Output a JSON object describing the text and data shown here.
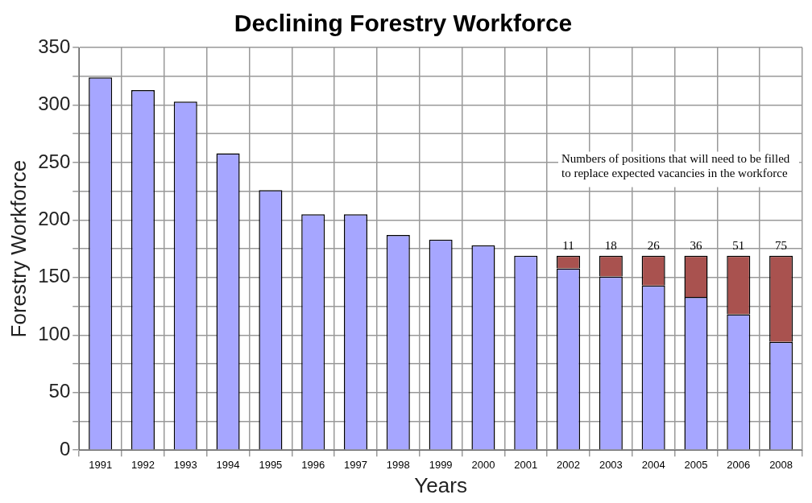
{
  "chart_data": {
    "type": "bar",
    "title": "Declining Forestry Workforce",
    "xlabel": "Years",
    "ylabel": "Forestry Workforce",
    "categories": [
      "1991",
      "1992",
      "1993",
      "1994",
      "1995",
      "1996",
      "1997",
      "1998",
      "1999",
      "2000",
      "2001",
      "2002",
      "2003",
      "2004",
      "2005",
      "2006",
      "2008"
    ],
    "stacked": true,
    "series": [
      {
        "color": "#a6a6ff",
        "values": [
          324,
          313,
          303,
          258,
          226,
          205,
          205,
          187,
          183,
          178,
          169,
          158,
          151,
          143,
          133,
          118,
          94
        ]
      },
      {
        "color": "#a9524f",
        "values": [
          null,
          null,
          null,
          null,
          null,
          null,
          null,
          null,
          null,
          null,
          null,
          11,
          18,
          26,
          36,
          51,
          75
        ],
        "value_labels": [
          null,
          null,
          null,
          null,
          null,
          null,
          null,
          null,
          null,
          null,
          null,
          "11",
          "18",
          "26",
          "36",
          "51",
          "75"
        ]
      }
    ],
    "ylim": [
      0,
      350
    ],
    "yticks": [
      0,
      {
        "value": 25,
        "label": null
      },
      50,
      {
        "value": 75,
        "label": null
      },
      100,
      {
        "value": 125,
        "label": null
      },
      150,
      {
        "value": 175,
        "label": null
      },
      200,
      {
        "value": 225,
        "label": null
      },
      250,
      {
        "value": 275,
        "label": null
      },
      300,
      {
        "value": 325,
        "label": null
      },
      350
    ],
    "grid": true,
    "legend": false,
    "annotations": [
      "Numbers of positions that will need to be filled to replace expected vacancies in the workforce"
    ]
  }
}
